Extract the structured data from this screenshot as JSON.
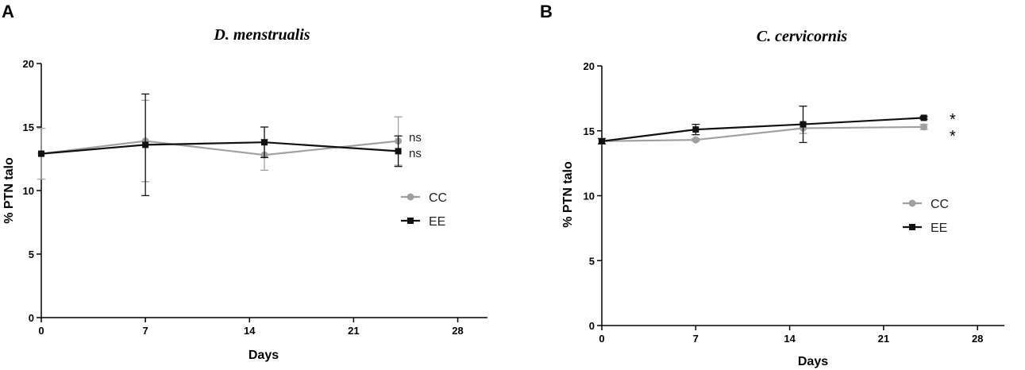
{
  "chart_data": [
    {
      "panel": "A",
      "type": "line",
      "title": "D. menstrualis",
      "xlabel": "Days",
      "ylabel": "% PTN talo",
      "xlim": [
        0,
        30
      ],
      "ylim": [
        0,
        20
      ],
      "xticks": [
        0,
        7,
        14,
        21,
        28
      ],
      "yticks": [
        0,
        5,
        10,
        15,
        20
      ],
      "legend_position": "right",
      "series": [
        {
          "name": "CC",
          "color": "#a0a0a0",
          "marker": "circle",
          "x": [
            0,
            7,
            15,
            24
          ],
          "y": [
            12.9,
            13.9,
            12.8,
            13.9
          ],
          "err": [
            2.0,
            3.2,
            1.2,
            1.9
          ],
          "annotation": "ns"
        },
        {
          "name": "EE",
          "color": "#111111",
          "marker": "square",
          "x": [
            0,
            7,
            15,
            24
          ],
          "y": [
            12.9,
            13.6,
            13.8,
            13.1
          ],
          "err": [
            0.0,
            4.0,
            1.2,
            1.2
          ],
          "annotation": "ns"
        }
      ]
    },
    {
      "panel": "B",
      "type": "line",
      "title": "C. cervicornis",
      "xlabel": "Days",
      "ylabel": "% PTN talo",
      "xlim": [
        0,
        30
      ],
      "ylim": [
        0,
        20
      ],
      "xticks": [
        0,
        7,
        14,
        21,
        28
      ],
      "yticks": [
        0,
        5,
        10,
        15,
        20
      ],
      "legend_position": "right",
      "series": [
        {
          "name": "CC",
          "color": "#a0a0a0",
          "marker": "circle",
          "x": [
            0,
            7,
            15,
            24
          ],
          "y": [
            14.2,
            14.3,
            15.2,
            15.3
          ],
          "err": [
            0.2,
            0.1,
            0.4,
            0.2
          ],
          "annotation": "*"
        },
        {
          "name": "EE",
          "color": "#111111",
          "marker": "square",
          "x": [
            0,
            7,
            15,
            24
          ],
          "y": [
            14.2,
            15.1,
            15.5,
            16.0
          ],
          "err": [
            0.2,
            0.4,
            1.4,
            0.1
          ],
          "annotation": "*"
        }
      ]
    }
  ]
}
